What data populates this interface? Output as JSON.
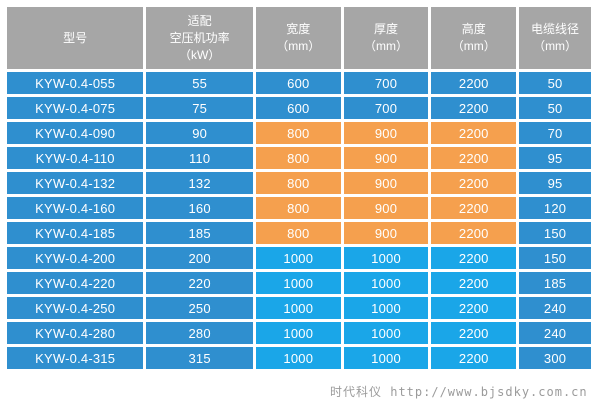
{
  "colors": {
    "header": "#a6a6a6",
    "blue": "#2f8fcf",
    "orange": "#f5a04e",
    "cyan": "#1aa6e8"
  },
  "headers": [
    [
      "型号"
    ],
    [
      "适配",
      "空压机功率",
      "（kW）"
    ],
    [
      "宽度",
      "（mm）"
    ],
    [
      "厚度",
      "（mm）"
    ],
    [
      "高度",
      "（mm）"
    ],
    [
      "电缆线径",
      "（mm）"
    ]
  ],
  "rows": [
    {
      "cells": [
        "KYW-0.4-055",
        "55",
        "600",
        "700",
        "2200",
        "50"
      ],
      "colors": [
        "blue",
        "blue",
        "blue",
        "blue",
        "blue",
        "blue"
      ]
    },
    {
      "cells": [
        "KYW-0.4-075",
        "75",
        "600",
        "700",
        "2200",
        "50"
      ],
      "colors": [
        "blue",
        "blue",
        "blue",
        "blue",
        "blue",
        "blue"
      ]
    },
    {
      "cells": [
        "KYW-0.4-090",
        "90",
        "800",
        "900",
        "2200",
        "70"
      ],
      "colors": [
        "blue",
        "blue",
        "orange",
        "orange",
        "orange",
        "blue"
      ]
    },
    {
      "cells": [
        "KYW-0.4-110",
        "110",
        "800",
        "900",
        "2200",
        "95"
      ],
      "colors": [
        "blue",
        "blue",
        "orange",
        "orange",
        "orange",
        "blue"
      ]
    },
    {
      "cells": [
        "KYW-0.4-132",
        "132",
        "800",
        "900",
        "2200",
        "95"
      ],
      "colors": [
        "blue",
        "blue",
        "orange",
        "orange",
        "orange",
        "blue"
      ]
    },
    {
      "cells": [
        "KYW-0.4-160",
        "160",
        "800",
        "900",
        "2200",
        "120"
      ],
      "colors": [
        "blue",
        "blue",
        "orange",
        "orange",
        "orange",
        "blue"
      ]
    },
    {
      "cells": [
        "KYW-0.4-185",
        "185",
        "800",
        "900",
        "2200",
        "150"
      ],
      "colors": [
        "blue",
        "blue",
        "orange",
        "orange",
        "orange",
        "blue"
      ]
    },
    {
      "cells": [
        "KYW-0.4-200",
        "200",
        "1000",
        "1000",
        "2200",
        "150"
      ],
      "colors": [
        "blue",
        "blue",
        "cyan",
        "cyan",
        "cyan",
        "blue"
      ]
    },
    {
      "cells": [
        "KYW-0.4-220",
        "220",
        "1000",
        "1000",
        "2200",
        "185"
      ],
      "colors": [
        "blue",
        "blue",
        "cyan",
        "cyan",
        "cyan",
        "blue"
      ]
    },
    {
      "cells": [
        "KYW-0.4-250",
        "250",
        "1000",
        "1000",
        "2200",
        "240"
      ],
      "colors": [
        "blue",
        "blue",
        "cyan",
        "cyan",
        "cyan",
        "blue"
      ]
    },
    {
      "cells": [
        "KYW-0.4-280",
        "280",
        "1000",
        "1000",
        "2200",
        "240"
      ],
      "colors": [
        "blue",
        "blue",
        "cyan",
        "cyan",
        "cyan",
        "blue"
      ]
    },
    {
      "cells": [
        "KYW-0.4-315",
        "315",
        "1000",
        "1000",
        "2200",
        "300"
      ],
      "colors": [
        "blue",
        "blue",
        "cyan",
        "cyan",
        "cyan",
        "blue"
      ]
    }
  ],
  "watermark": "时代科仪 http://www.bjsdky.com.cn"
}
